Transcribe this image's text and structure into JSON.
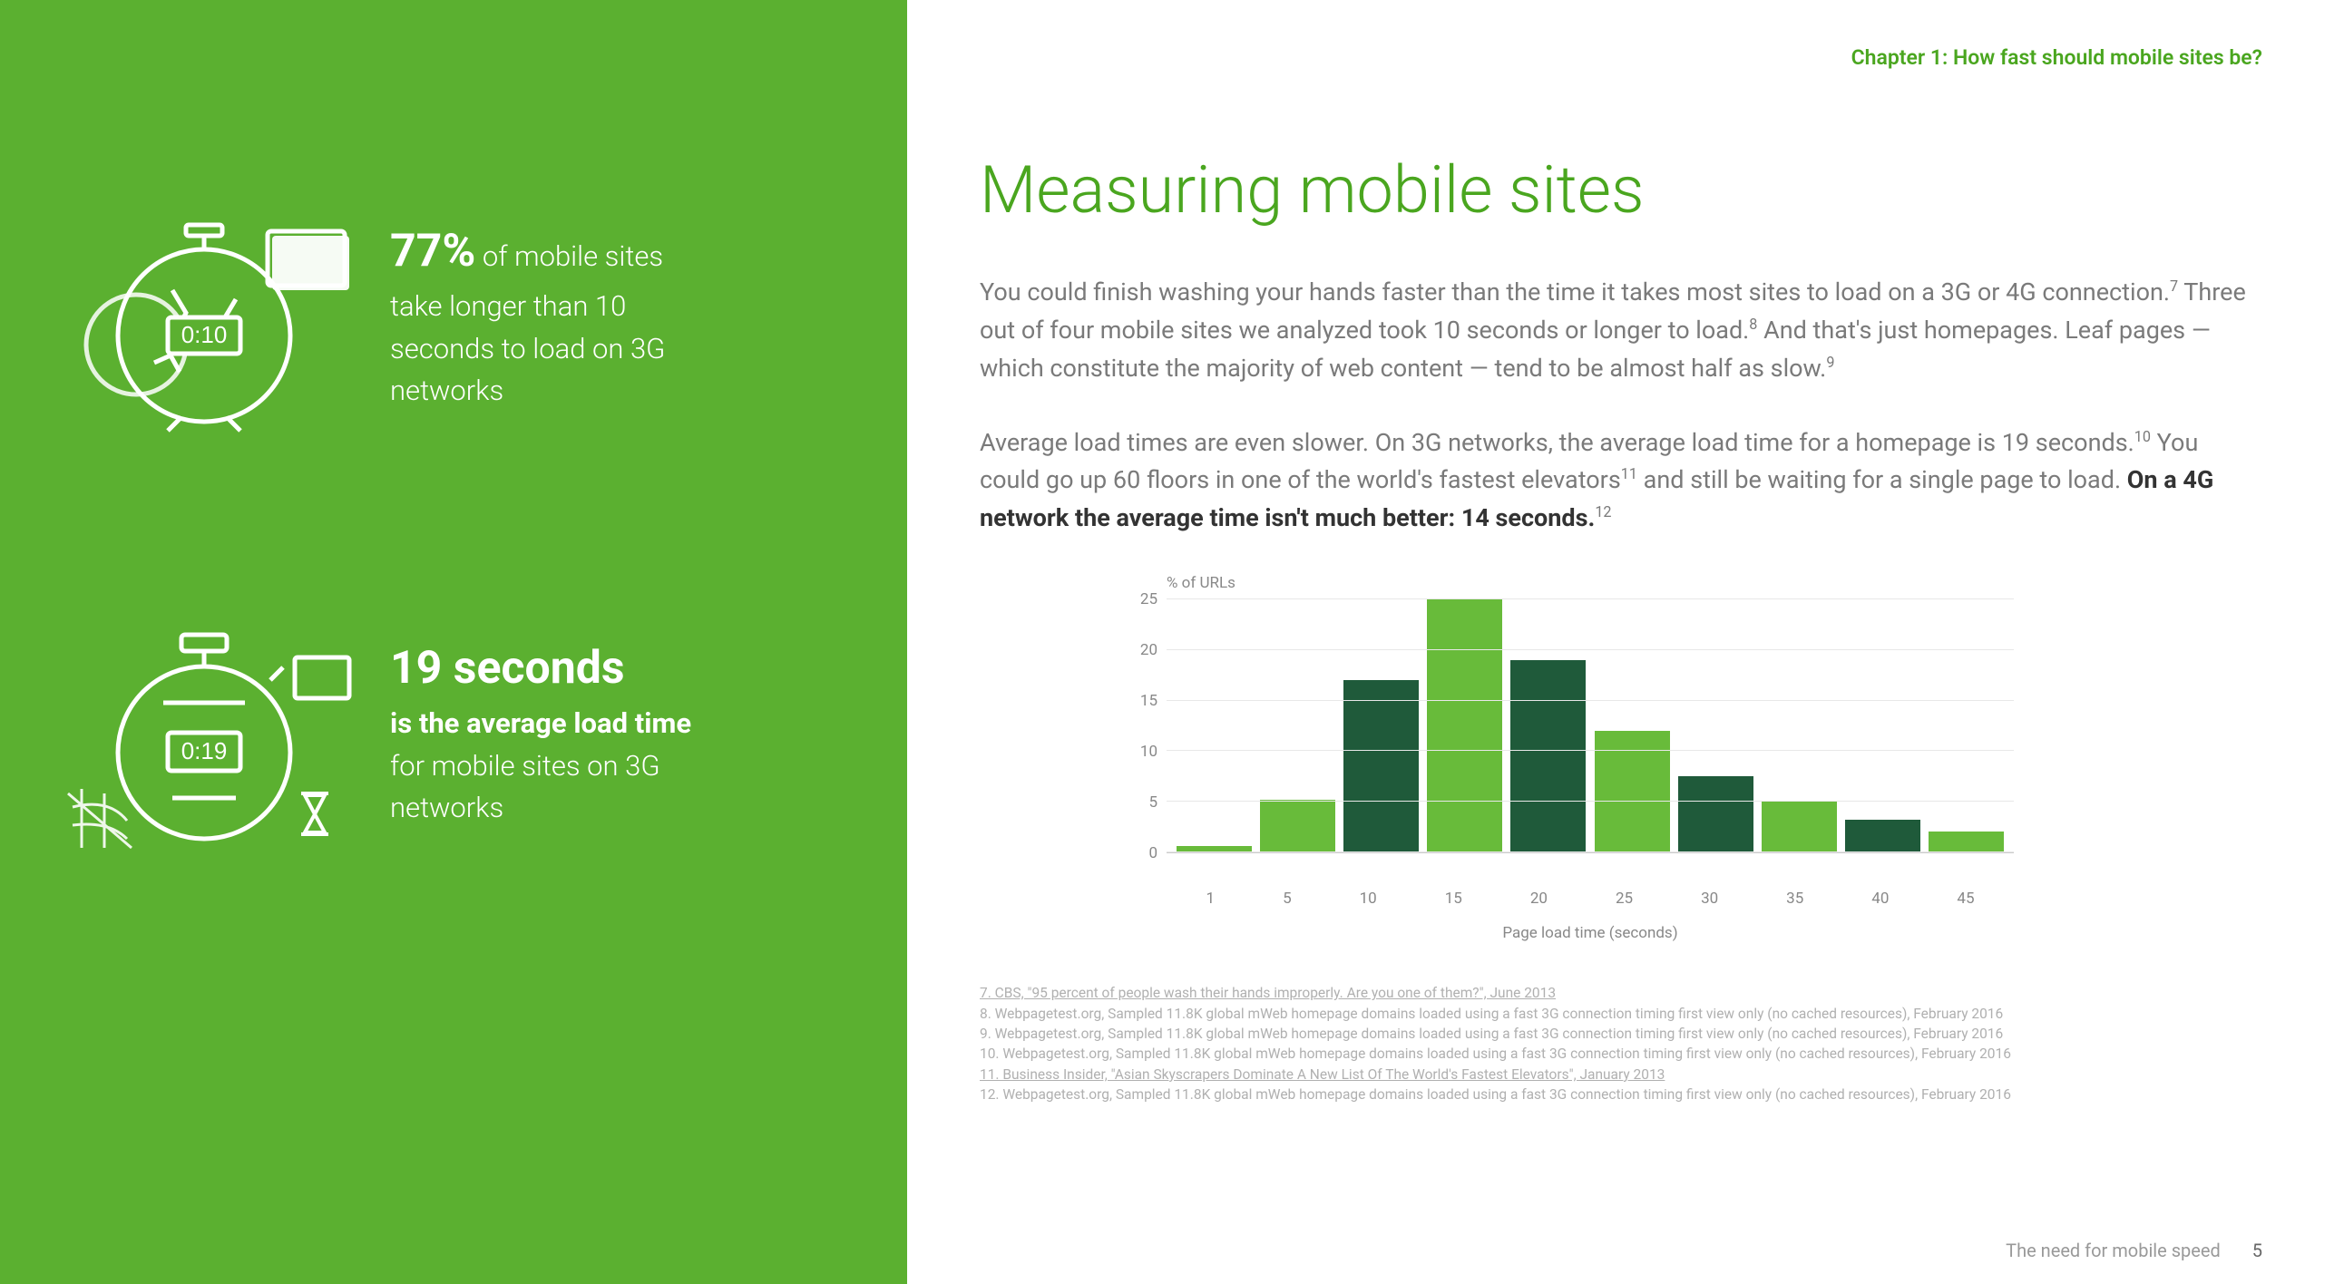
{
  "colors": {
    "green_panel": "#5bb030",
    "green_accent": "#4aa61f",
    "bar_light": "#68bb3a",
    "bar_dark": "#1f5a3a",
    "white": "#ffffff",
    "body_gray": "#7a7a7a",
    "footnote_gray": "#b0b0b0"
  },
  "left": {
    "stat1": {
      "big": "77%",
      "rest_line1": " of mobile sites",
      "line2": "take longer than 10",
      "line3": "seconds to load on 3G",
      "line4": "networks",
      "icon_timer": "0:10"
    },
    "stat2": {
      "big": "19 seconds",
      "line2": "is the average load time",
      "line3": "for mobile sites on 3G",
      "line4": "networks",
      "icon_timer": "0:19"
    }
  },
  "right": {
    "chapter": "Chapter 1: How fast should mobile sites be?",
    "title": "Measuring mobile sites",
    "para1_a": "You could finish washing your hands faster than the time it takes most sites to load on a 3G or 4G connection.",
    "para1_b": " Three out of four mobile sites we analyzed took 10 seconds or longer to load.",
    "para1_c": " And that's just homepages. Leaf pages — which constitute the majority of web content — tend to be almost half as slow.",
    "para2_a": "Average load times are even slower. On 3G networks, the average load time for a homepage is 19 seconds.",
    "para2_b": " You could go up 60 floors in one of the world's fastest elevators",
    "para2_c": " and still be waiting for a single page to load. ",
    "para2_emph": "On a 4G network the average time isn't much better: 14 seconds.",
    "sup7": "7",
    "sup8": "8",
    "sup9": "9",
    "sup10": "10",
    "sup11": "11",
    "sup12": "12"
  },
  "chart": {
    "type": "bar",
    "y_title": "% of URLs",
    "x_title": "Page load time (seconds)",
    "ylim": [
      0,
      25
    ],
    "y_ticks": [
      0,
      5,
      10,
      15,
      20,
      25
    ],
    "categories": [
      "1",
      "5",
      "10",
      "15",
      "20",
      "25",
      "30",
      "35",
      "40",
      "45"
    ],
    "values": [
      0.6,
      5.2,
      17,
      25,
      19,
      12,
      7.5,
      5,
      3.2,
      2.1
    ],
    "bar_colors": [
      "#68bb3a",
      "#68bb3a",
      "#1f5a3a",
      "#68bb3a",
      "#1f5a3a",
      "#68bb3a",
      "#1f5a3a",
      "#68bb3a",
      "#1f5a3a",
      "#68bb3a"
    ],
    "bar_width_pct": 9,
    "grid_color": "#e8e8e8",
    "axis_fontsize": 17
  },
  "footnotes": {
    "n7": "7. CBS, \"95 percent of people wash their hands improperly. Are you one of them?\", June 2013",
    "n8": "8. Webpagetest.org, Sampled 11.8K global mWeb homepage domains loaded using a fast 3G connection timing first view only (no cached resources), February 2016",
    "n9": "9. Webpagetest.org, Sampled 11.8K global mWeb homepage domains loaded using a fast 3G connection timing first view only (no cached resources), February 2016",
    "n10": "10. Webpagetest.org, Sampled 11.8K global mWeb homepage domains loaded using a fast 3G connection timing first view only (no cached resources), February 2016",
    "n11": "11. Business Insider, \"Asian Skyscrapers Dominate A New List Of The World's Fastest Elevators\", January 2013",
    "n12": "12. Webpagetest.org, Sampled 11.8K global mWeb homepage domains loaded using a fast 3G connection timing first view only (no cached resources), February 2016"
  },
  "footer": {
    "text": "The need for mobile speed",
    "page": "5"
  }
}
